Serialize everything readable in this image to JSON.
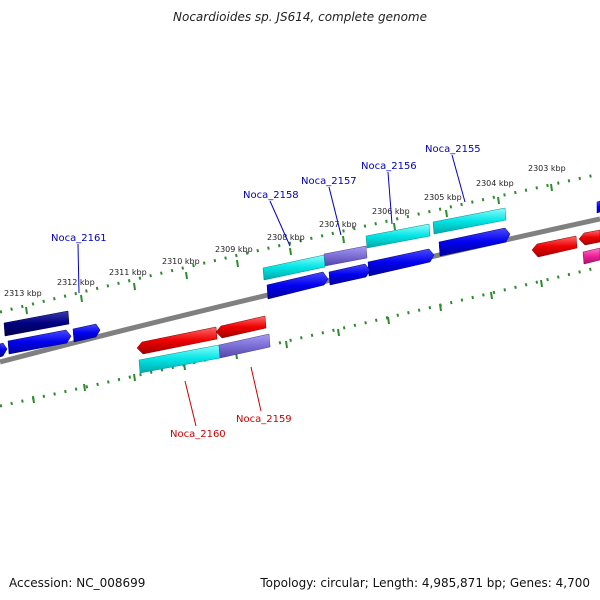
{
  "title": "Nocardioides sp. JS614, complete genome",
  "footer": {
    "accession": "Accession: NC_008699",
    "summary": "Topology: circular; Length: 4,985,871 bp; Genes: 4,700"
  },
  "kbp_labels": [
    "2303 kbp",
    "2304 kbp",
    "2305 kbp",
    "2306 kbp",
    "2307 kbp",
    "2308 kbp",
    "2309 kbp",
    "2310 kbp",
    "2311 kbp",
    "2312 kbp",
    "2313 kbp"
  ],
  "gene_labels": {
    "noca_2155": "Noca_2155",
    "noca_2156": "Noca_2156",
    "noca_2157": "Noca_2157",
    "noca_2158": "Noca_2158",
    "noca_2159": "Noca_2159",
    "noca_2160": "Noca_2160",
    "noca_2161": "Noca_2161"
  },
  "colors": {
    "forward_blue": "#0000ee",
    "reverse_red": "#ee0000",
    "cyan": "#00e5e5",
    "purple": "#7b6fd6",
    "navy": "#000080",
    "pink": "#ee2299",
    "tick_green": "#2e8b2e",
    "backbone": "#808080"
  }
}
